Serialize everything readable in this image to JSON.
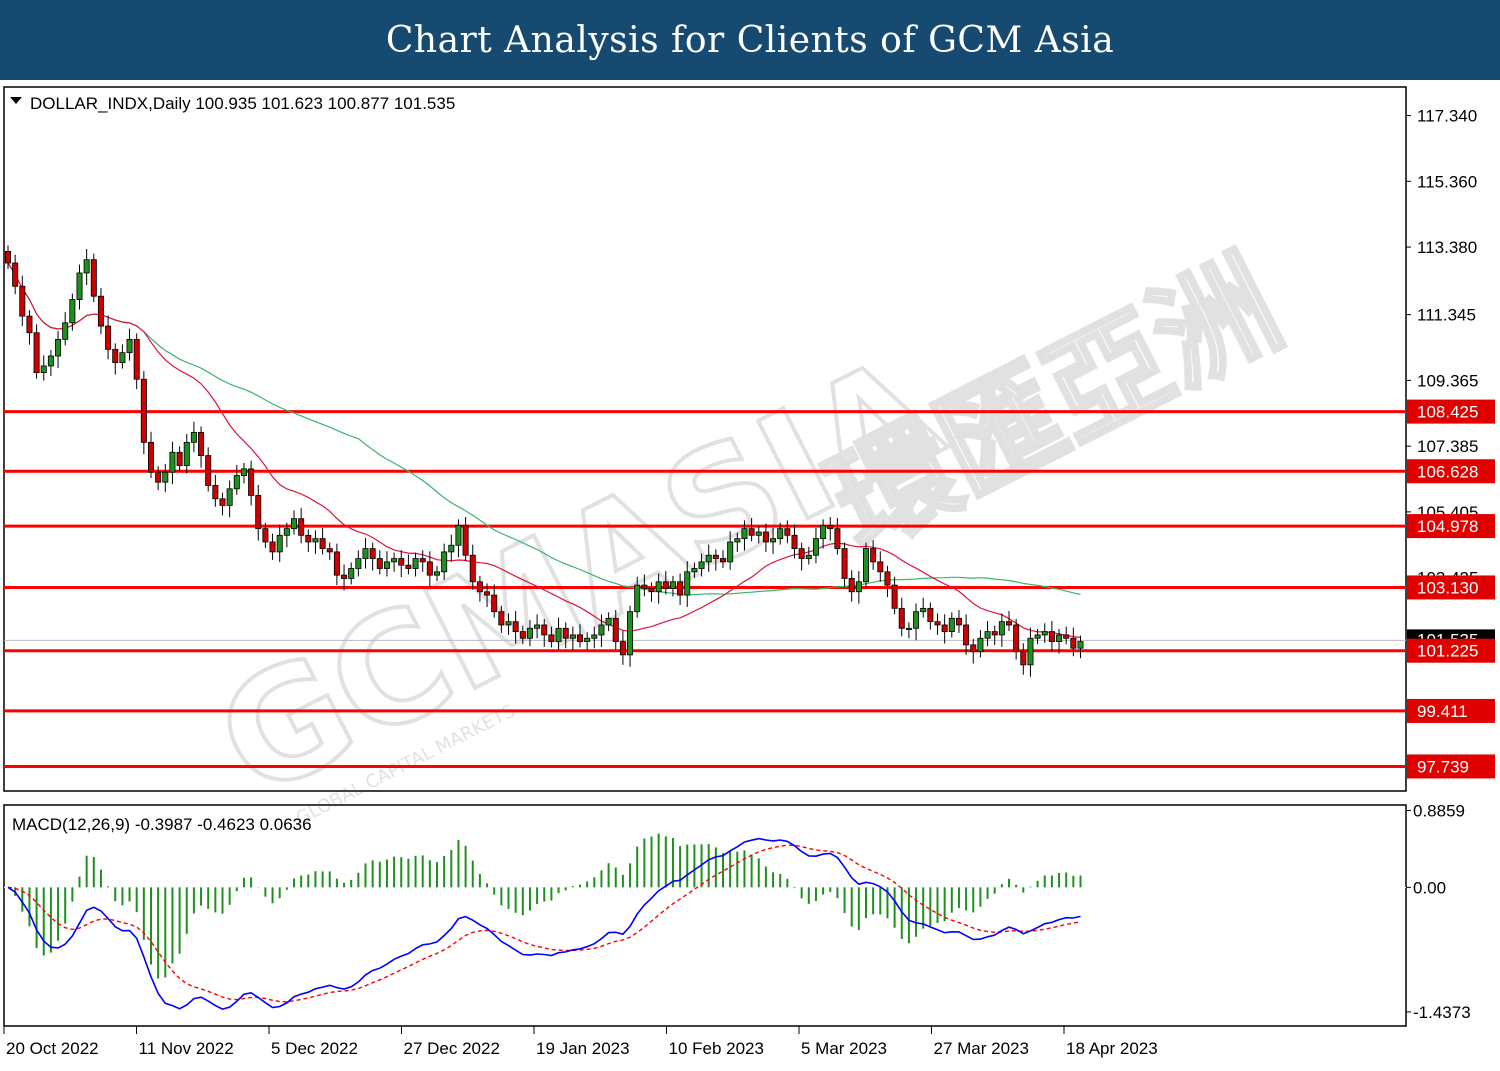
{
  "banner": {
    "title": "Chart Analysis for Clients of GCM Asia"
  },
  "watermark": {
    "text": "GCMASIA",
    "cn": "環匯亞洲",
    "sub": "GLOBAL CAPITAL MARKETS"
  },
  "colors": {
    "banner": "#174a70",
    "bull": "#1f8f1f",
    "bear": "#cc0000",
    "level": "#ff0000",
    "ma_fast": "#dc143c",
    "ma_slow": "#3cb371",
    "macd": "#0000ff",
    "signal": "#ff0000",
    "hist": "#1f8f1f"
  },
  "chart_data": [
    {
      "type": "candlestick",
      "header": "DOLLAR_INDX,Daily  100.935 101.623 100.877 101.535",
      "symbol": "DOLLAR_INDX",
      "timeframe": "Daily",
      "ohlc_last": [
        100.935,
        101.623,
        100.877,
        101.535
      ],
      "ylim": [
        97.0,
        118.2
      ],
      "yticks": [
        "117.340",
        "115.360",
        "113.380",
        "111.345",
        "109.365",
        "107.385",
        "105.405",
        "103.425"
      ],
      "current_price": "101.535",
      "levels": [
        "108.425",
        "106.628",
        "104.978",
        "103.130",
        "101.225",
        "99.411",
        "97.739"
      ],
      "closes": [
        112.9,
        112.2,
        111.3,
        110.8,
        109.6,
        109.8,
        110.1,
        110.6,
        111.1,
        111.8,
        112.6,
        113.0,
        111.9,
        111.0,
        110.3,
        109.9,
        110.2,
        110.6,
        109.4,
        107.5,
        106.6,
        106.3,
        106.6,
        107.2,
        106.8,
        107.5,
        107.8,
        107.1,
        106.2,
        105.8,
        105.6,
        106.1,
        106.5,
        106.7,
        105.9,
        104.9,
        104.5,
        104.2,
        104.7,
        104.9,
        105.2,
        104.7,
        104.5,
        104.6,
        104.3,
        104.2,
        103.5,
        103.4,
        103.7,
        104.0,
        104.3,
        104.0,
        103.7,
        103.9,
        104.0,
        103.8,
        103.7,
        104.0,
        103.9,
        103.5,
        103.6,
        104.2,
        104.4,
        105.0,
        104.1,
        103.3,
        103.0,
        102.9,
        102.4,
        102.0,
        102.1,
        101.8,
        101.6,
        101.9,
        102.0,
        101.7,
        101.5,
        101.9,
        101.6,
        101.7,
        101.5,
        101.6,
        101.7,
        102.0,
        102.2,
        101.5,
        101.1,
        102.4,
        103.2,
        103.1,
        103.0,
        103.3,
        103.1,
        103.3,
        102.9,
        103.6,
        103.7,
        103.9,
        104.1,
        104.0,
        103.9,
        104.5,
        104.6,
        104.9,
        104.7,
        104.8,
        104.5,
        104.6,
        104.9,
        104.7,
        104.3,
        104.0,
        104.1,
        104.6,
        105.0,
        104.9,
        104.3,
        103.4,
        103.0,
        103.3,
        104.3,
        103.9,
        103.6,
        103.2,
        102.5,
        101.9,
        101.9,
        102.4,
        102.5,
        102.1,
        102.0,
        101.8,
        102.2,
        102.0,
        101.4,
        101.2,
        101.6,
        101.8,
        101.7,
        102.1,
        102.0,
        101.2,
        100.8,
        101.6,
        101.7,
        101.8,
        101.5,
        101.7,
        101.6,
        101.3,
        101.5
      ]
    },
    {
      "type": "line",
      "header": "MACD(12,26,9) -0.3987 -0.4623 0.0636",
      "indicator": "MACD(12,26,9)",
      "values": [
        -0.3987,
        -0.4623,
        0.0636
      ],
      "ylim": [
        -1.6,
        0.95
      ],
      "yticks": [
        "0.8859",
        "0.00",
        "-1.4373"
      ]
    }
  ],
  "x_axis": {
    "ticks": [
      "20 Oct 2022",
      "11 Nov 2022",
      "5 Dec 2022",
      "27 Dec 2022",
      "19 Jan 2023",
      "10 Feb 2023",
      "5 Mar 2023",
      "27 Mar 2023",
      "18 Apr 2023"
    ]
  }
}
